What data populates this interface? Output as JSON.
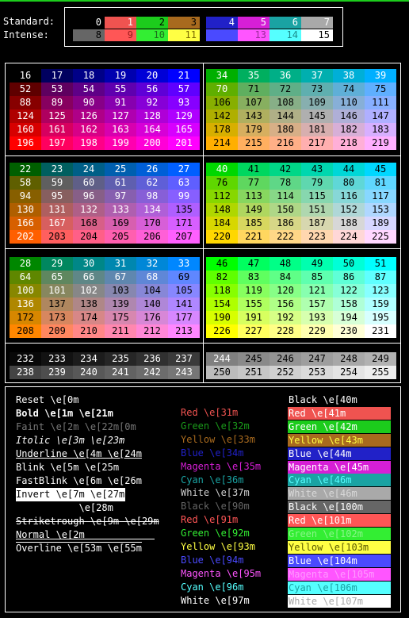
{
  "labels": {
    "standard": "Standard:",
    "intense": "Intense:"
  },
  "basic": {
    "standard": [
      {
        "n": "0",
        "bg": "#000000",
        "fg": "#ffffff"
      },
      {
        "n": "1",
        "bg": "#ef5350",
        "fg": "#ffffff"
      },
      {
        "n": "2",
        "bg": "#1ccc1c",
        "fg": "#000000"
      },
      {
        "n": "3",
        "bg": "#a86a1e",
        "fg": "#000000"
      },
      {
        "n": "4",
        "bg": "#2121c8",
        "fg": "#ffffff"
      },
      {
        "n": "5",
        "bg": "#d61fd6",
        "fg": "#ffffff"
      },
      {
        "n": "6",
        "bg": "#1aa3a3",
        "fg": "#ffffff"
      },
      {
        "n": "7",
        "bg": "#a9a9a9",
        "fg": "#ffffff"
      }
    ],
    "intense": [
      {
        "n": "8",
        "bg": "#666666",
        "fg": "#000000"
      },
      {
        "n": "9",
        "bg": "#ff5656",
        "fg": "#9a1c1c"
      },
      {
        "n": "10",
        "bg": "#33ee33",
        "fg": "#1c6e1c"
      },
      {
        "n": "11",
        "bg": "#ffff44",
        "fg": "#7a6a00"
      },
      {
        "n": "12",
        "bg": "#4a4aff",
        "fg": "#4a4aff"
      },
      {
        "n": "13",
        "bg": "#ff55ff",
        "fg": "#9a2a9a"
      },
      {
        "n": "14",
        "bg": "#55ffff",
        "fg": "#1a8a8a"
      },
      {
        "n": "15",
        "bg": "#ffffff",
        "fg": "#000000"
      }
    ]
  },
  "attributes": [
    {
      "text": "Reset \\e[0m",
      "style": "normal"
    },
    {
      "text": "Bold \\e[1m \\e[21m",
      "style": "bold"
    },
    {
      "text": "Faint \\e[2m \\e[22m[0m",
      "style": "faint"
    },
    {
      "text": "Itolic \\e[3m \\e[23m",
      "style": "italic"
    },
    {
      "text": "Underline \\e[4m \\e[24m",
      "style": "underline"
    },
    {
      "text": "Blink \\e[5m \\e[25m",
      "style": "normal"
    },
    {
      "text": "FastBlink \\e[6m \\e[26m",
      "style": "normal"
    },
    {
      "text": "Invert \\e[7m \\e[27m",
      "style": "invert"
    },
    {
      "text": "           \\e[28m",
      "style": "normal"
    },
    {
      "text": "Striketrough \\e[9m \\e[29m",
      "style": "strike"
    },
    {
      "text": "Normal \\e[2m",
      "style": "normal"
    },
    {
      "text": "Overline \\e[53m \\e[55m",
      "style": "overline"
    }
  ],
  "foreground": [
    {
      "text": "Red \\e[31m",
      "color": "#ef5350"
    },
    {
      "text": "Green \\e[32m",
      "color": "#1a9a1a"
    },
    {
      "text": "Yellow \\e[33m",
      "color": "#a86a1e"
    },
    {
      "text": "Blue \\e[34m",
      "color": "#2121c8"
    },
    {
      "text": "Magenta \\e[35m",
      "color": "#d61fd6"
    },
    {
      "text": "Cyan \\e[36m",
      "color": "#1aa3a3"
    },
    {
      "text": "White \\e[37m",
      "color": "#d0d0d0"
    },
    {
      "text": "Black \\e[90m",
      "color": "#666666"
    },
    {
      "text": "Red \\e[91m",
      "color": "#ff5656"
    },
    {
      "text": "Green \\e[92m",
      "color": "#33ee33"
    },
    {
      "text": "Yellow \\e[93m",
      "color": "#ffff44"
    },
    {
      "text": "Blue \\e[94m",
      "color": "#4a4aff"
    },
    {
      "text": "Magenta \\e[95m",
      "color": "#ff55ff"
    },
    {
      "text": "Cyan \\e[96m",
      "color": "#55ffff"
    },
    {
      "text": "White \\e[97m",
      "color": "#ffffff"
    }
  ],
  "background": [
    {
      "text": "Black \\e[40m",
      "bg": "#000000",
      "fg": "#ffffff"
    },
    {
      "text": "Red \\e[41m",
      "bg": "#ef5350",
      "fg": "#ffffff"
    },
    {
      "text": "Green \\e[42m",
      "bg": "#1ccc1c",
      "fg": "#ffffff"
    },
    {
      "text": "Yellow \\e[43m",
      "bg": "#a86a1e",
      "fg": "#ffff44"
    },
    {
      "text": "Blue \\e[44m",
      "bg": "#2121c8",
      "fg": "#ffffff"
    },
    {
      "text": "Magenta \\e[45m",
      "bg": "#d61fd6",
      "fg": "#ffffff"
    },
    {
      "text": "Cyan \\e[46m",
      "bg": "#1aa3a3",
      "fg": "#55ffff"
    },
    {
      "text": "White \\e[46m",
      "bg": "#a9a9a9",
      "fg": "#d8d8d8"
    },
    {
      "text": "Black \\e[100m",
      "bg": "#666666",
      "fg": "#ffffff"
    },
    {
      "text": "Red \\e[101m",
      "bg": "#ff5656",
      "fg": "#ffffff"
    },
    {
      "text": "Green \\e[102m",
      "bg": "#33ee33",
      "fg": "#8af58a"
    },
    {
      "text": "Yellow \\e[103m",
      "bg": "#ffff44",
      "fg": "#5a5a00"
    },
    {
      "text": "Blue \\e[104m",
      "bg": "#4a4aff",
      "fg": "#ffffff"
    },
    {
      "text": "Magenta \\e[105m",
      "bg": "#ff55ff",
      "fg": "#ff99ff"
    },
    {
      "text": "Cyan \\e[106m",
      "bg": "#55ffff",
      "fg": "#1aa3a3"
    },
    {
      "text": "White \\e[107m",
      "bg": "#ffffff",
      "fg": "#a9a9a9"
    }
  ]
}
